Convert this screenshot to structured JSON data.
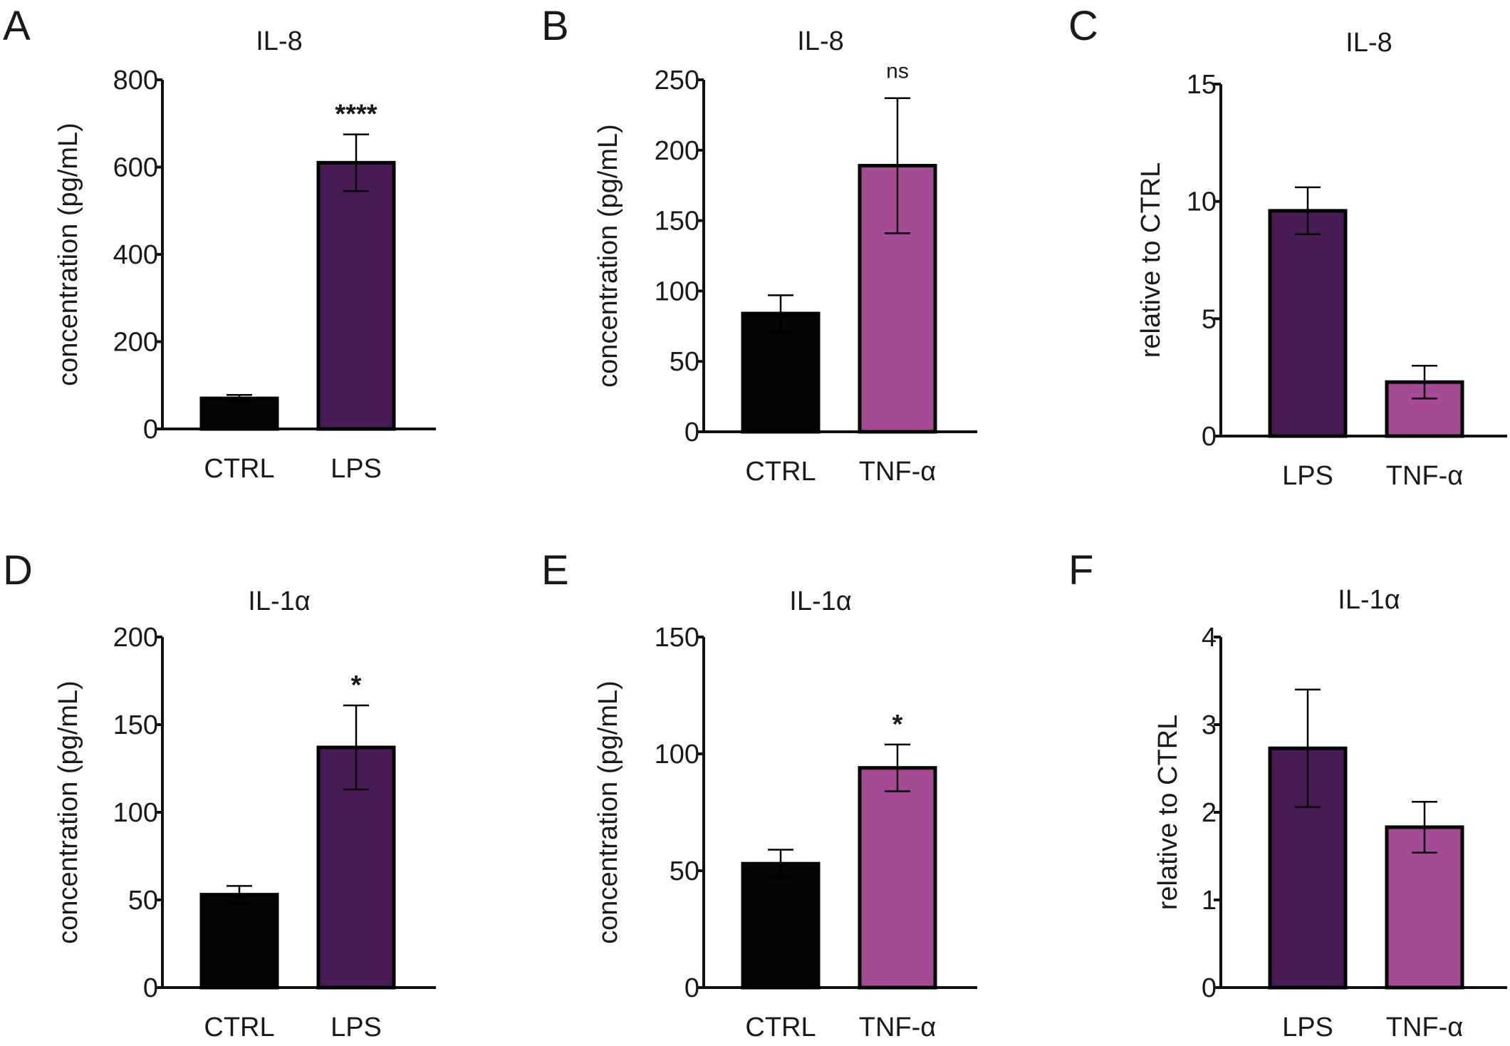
{
  "colors": {
    "ctrl": "#050505",
    "lps": "#481b56",
    "tnf": "#a64a96",
    "axis": "#111111"
  },
  "chart_data": [
    {
      "panel": "A",
      "type": "bar",
      "title": "IL-8",
      "ylabel": "concentration (pg/mL)",
      "ylim": [
        0,
        800
      ],
      "yticks": [
        0,
        200,
        400,
        600,
        800
      ],
      "categories": [
        "CTRL",
        "LPS"
      ],
      "values": [
        70,
        610
      ],
      "errors": [
        8,
        65
      ],
      "significance": [
        "",
        "****"
      ],
      "bar_colors": [
        "ctrl",
        "lps"
      ]
    },
    {
      "panel": "B",
      "type": "bar",
      "title": "IL-8",
      "ylabel": "concentration (pg/mL)",
      "ylim": [
        0,
        250
      ],
      "yticks": [
        0,
        50,
        100,
        150,
        200,
        250
      ],
      "categories": [
        "CTRL",
        "TNF-α"
      ],
      "values": [
        84,
        189
      ],
      "errors": [
        13,
        48
      ],
      "significance": [
        "",
        "ns"
      ],
      "bar_colors": [
        "ctrl",
        "tnf"
      ]
    },
    {
      "panel": "C",
      "type": "bar",
      "title": "IL-8",
      "ylabel": "relative to CTRL",
      "ylim": [
        0,
        15
      ],
      "yticks": [
        0,
        5,
        10,
        15
      ],
      "categories": [
        "LPS",
        "TNF-α"
      ],
      "values": [
        9.6,
        2.3
      ],
      "errors": [
        1.0,
        0.7
      ],
      "significance": [
        "",
        ""
      ],
      "bar_colors": [
        "lps",
        "tnf"
      ]
    },
    {
      "panel": "D",
      "type": "bar",
      "title": "IL-1α",
      "ylabel": "concentration (pg/mL)",
      "ylim": [
        0,
        200
      ],
      "yticks": [
        0,
        50,
        100,
        150,
        200
      ],
      "categories": [
        "CTRL",
        "LPS"
      ],
      "values": [
        53,
        137
      ],
      "errors": [
        5,
        24
      ],
      "significance": [
        "",
        "*"
      ],
      "bar_colors": [
        "ctrl",
        "lps"
      ]
    },
    {
      "panel": "E",
      "type": "bar",
      "title": "IL-1α",
      "ylabel": "concentration (pg/mL)",
      "ylim": [
        0,
        150
      ],
      "yticks": [
        0,
        50,
        100,
        150
      ],
      "categories": [
        "CTRL",
        "TNF-α"
      ],
      "values": [
        53,
        94
      ],
      "errors": [
        6,
        10
      ],
      "significance": [
        "",
        "*"
      ],
      "bar_colors": [
        "ctrl",
        "tnf"
      ]
    },
    {
      "panel": "F",
      "type": "bar",
      "title": "IL-1α",
      "ylabel": "relative to CTRL",
      "ylim": [
        0,
        4
      ],
      "yticks": [
        0,
        1,
        2,
        3,
        4
      ],
      "categories": [
        "LPS",
        "TNF-α"
      ],
      "values": [
        2.73,
        1.83
      ],
      "errors": [
        0.67,
        0.29
      ],
      "significance": [
        "",
        ""
      ],
      "bar_colors": [
        "lps",
        "tnf"
      ]
    }
  ]
}
